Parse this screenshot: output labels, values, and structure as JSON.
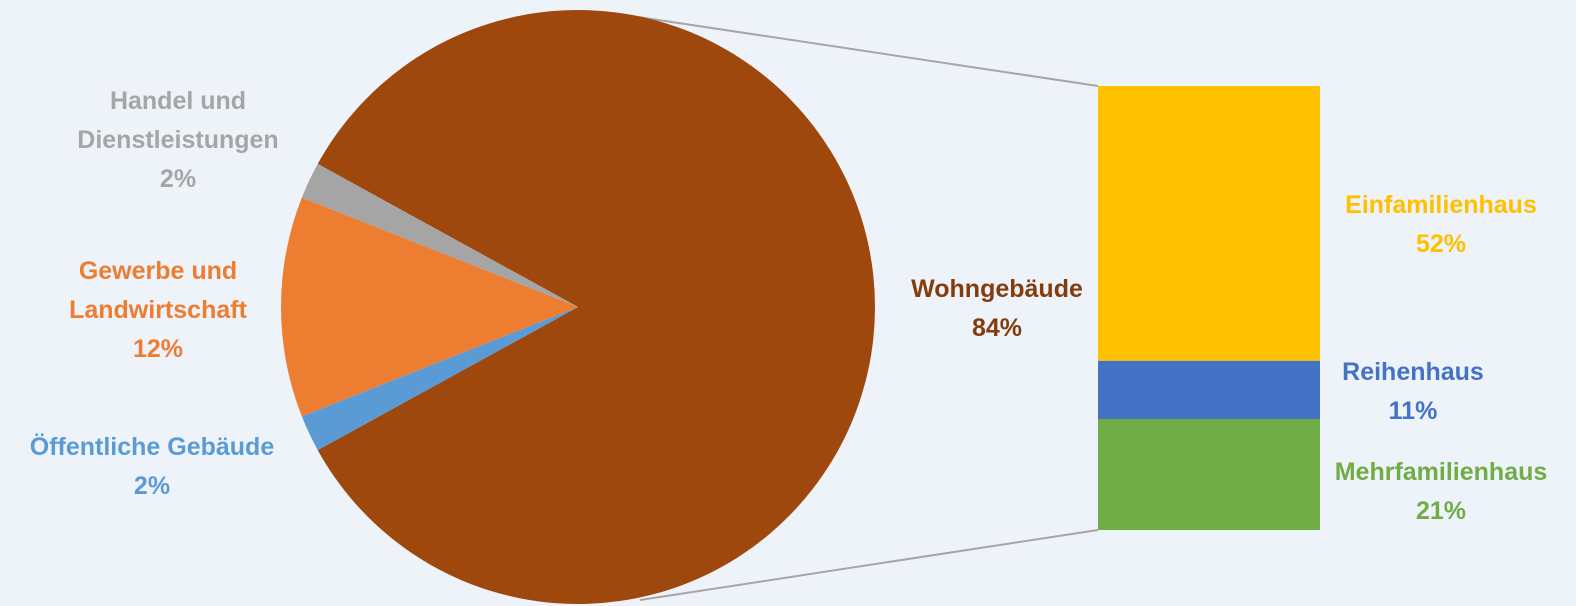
{
  "chart_data": [
    {
      "type": "pie",
      "categories": [
        "Wohngebäude",
        "Handel und Dienstleistungen",
        "Gewerbe und Landwirtschaft",
        "Öffentliche Gebäude"
      ],
      "values": [
        84,
        2,
        12,
        2
      ],
      "value_labels": [
        "84%",
        "2%",
        "12%",
        "2%"
      ],
      "colors": [
        "#9e480e",
        "#a5a5a5",
        "#ed7d31",
        "#5b9bd5"
      ],
      "label_colors": [
        "#843c0c",
        "#a5a5a5",
        "#ed7d31",
        "#5b9bd5"
      ]
    },
    {
      "type": "stacked-bar",
      "categories": [
        "Einfamilienhaus",
        "Reihenhaus",
        "Mehrfamilienhaus"
      ],
      "values": [
        52,
        11,
        21
      ],
      "value_labels": [
        "52%",
        "11%",
        "21%"
      ],
      "colors": [
        "#ffc000",
        "#4472c4",
        "#70ad47"
      ]
    }
  ]
}
